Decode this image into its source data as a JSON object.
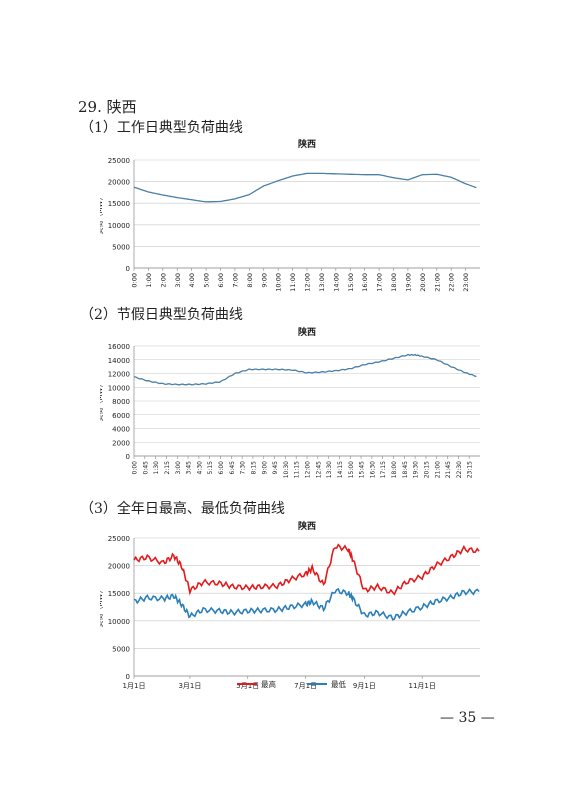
{
  "document": {
    "section_title": "29. 陕西",
    "sub1": "（1）工作日典型负荷曲线",
    "sub2": "（2）节假日典型负荷曲线",
    "sub3": "（3）全年日最高、最低负荷曲线",
    "page_number": "— 35 —"
  },
  "chart_data": [
    {
      "type": "line",
      "title": "陕西",
      "ylabel": "负荷（MW）",
      "xlabel": "",
      "ylim": [
        0,
        25000
      ],
      "yticks": [
        0,
        5000,
        10000,
        15000,
        20000,
        25000
      ],
      "ytick_labels": [
        "0",
        "5000",
        "10000",
        "15000",
        "20000",
        "25000"
      ],
      "x_tick_labels": [
        "0:00",
        "1:00",
        "2:00",
        "3:00",
        "4:00",
        "5:00",
        "6:00",
        "7:00",
        "8:00",
        "9:00",
        "10:00",
        "11:00",
        "12:00",
        "13:00",
        "14:00",
        "15:00",
        "16:00",
        "17:00",
        "18:00",
        "19:00",
        "20:00",
        "21:00",
        "22:00",
        "23:00"
      ],
      "grid": true,
      "color": "#4a7fa8",
      "series": [
        {
          "x": [
            "0:00",
            "1:00",
            "2:00",
            "3:00",
            "4:00",
            "5:00",
            "6:00",
            "7:00",
            "8:00",
            "9:00",
            "10:00",
            "11:00",
            "12:00",
            "13:00",
            "14:00",
            "15:00",
            "16:00",
            "17:00",
            "18:00",
            "19:00",
            "20:00",
            "21:00",
            "22:00",
            "23:00",
            "23:45"
          ],
          "values": [
            18700,
            17600,
            16900,
            16300,
            15800,
            15300,
            15400,
            16000,
            17000,
            19000,
            20200,
            21300,
            21900,
            21900,
            21800,
            21700,
            21600,
            21600,
            20900,
            20400,
            21600,
            21700,
            21000,
            19500,
            18600
          ]
        }
      ]
    },
    {
      "type": "line",
      "title": "陕西",
      "ylabel": "负荷（MW）",
      "xlabel": "",
      "ylim": [
        0,
        16000
      ],
      "yticks": [
        0,
        2000,
        4000,
        6000,
        8000,
        10000,
        12000,
        14000,
        16000
      ],
      "ytick_labels": [
        "0",
        "2000",
        "4000",
        "6000",
        "8000",
        "10000",
        "12000",
        "14000",
        "16000"
      ],
      "x_tick_labels": [
        "0:00",
        "0:45",
        "1:30",
        "2:15",
        "3:00",
        "3:45",
        "4:30",
        "5:15",
        "6:00",
        "6:45",
        "7:30",
        "8:15",
        "9:00",
        "9:45",
        "10:30",
        "11:15",
        "12:00",
        "12:45",
        "13:30",
        "14:15",
        "15:00",
        "15:45",
        "16:30",
        "17:15",
        "18:00",
        "18:45",
        "19:30",
        "20:15",
        "21:00",
        "21:45",
        "22:30",
        "23:15"
      ],
      "grid": true,
      "color": "#4a7fa8",
      "series": [
        {
          "x": [
            "0:00",
            "1:00",
            "2:00",
            "3:00",
            "4:00",
            "5:00",
            "6:00",
            "7:00",
            "8:00",
            "9:00",
            "10:00",
            "11:00",
            "12:00",
            "13:00",
            "14:00",
            "15:00",
            "16:00",
            "17:00",
            "18:00",
            "19:00",
            "19:30",
            "20:00",
            "21:00",
            "22:00",
            "23:00",
            "23:45"
          ],
          "values": [
            11500,
            10900,
            10500,
            10400,
            10400,
            10500,
            10800,
            12000,
            12600,
            12600,
            12600,
            12500,
            12100,
            12200,
            12400,
            12700,
            13300,
            13700,
            14200,
            14700,
            14700,
            14500,
            14000,
            13000,
            12100,
            11600
          ]
        }
      ]
    },
    {
      "type": "line",
      "title": "陕西",
      "ylabel": "负荷（MW）",
      "xlabel": "",
      "ylim": [
        0,
        25000
      ],
      "yticks": [
        0,
        5000,
        10000,
        15000,
        20000,
        25000
      ],
      "ytick_labels": [
        "0",
        "5000",
        "10000",
        "15000",
        "20000",
        "25000"
      ],
      "x_tick_labels": [
        "1月1日",
        "3月1日",
        "5月1日",
        "7月1日",
        "9月1日",
        "11月1日"
      ],
      "legend": "bottom",
      "grid": true,
      "series": [
        {
          "name": "最高",
          "color": "#e31a1c",
          "x": [
            "1月1日",
            "1月15日",
            "2月1日",
            "2月12日",
            "2月20日",
            "3月1日",
            "3月15日",
            "4月1日",
            "4月15日",
            "5月1日",
            "5月15日",
            "6月1日",
            "6月15日",
            "7月1日",
            "7月8日",
            "7月20日",
            "8月1日",
            "8月15日",
            "8月20日",
            "9月1日",
            "9月15日",
            "10月1日",
            "10月15日",
            "11月1日",
            "11月15日",
            "12月1日",
            "12月15日",
            "12月31日"
          ],
          "values": [
            21000,
            21500,
            20500,
            21800,
            20000,
            15500,
            17000,
            16800,
            16200,
            16000,
            16200,
            16300,
            17500,
            18500,
            19500,
            16500,
            23500,
            23000,
            21000,
            15500,
            16200,
            15000,
            17000,
            18000,
            20000,
            21500,
            23000,
            22600
          ]
        },
        {
          "name": "最低",
          "color": "#2b7fb8",
          "x": [
            "1月1日",
            "1月15日",
            "2月1日",
            "2月12日",
            "2月20日",
            "3月1日",
            "3月15日",
            "4月1日",
            "4月15日",
            "5月1日",
            "5月15日",
            "6月1日",
            "6月15日",
            "7月1日",
            "7月8日",
            "7月20日",
            "8月1日",
            "8月15日",
            "8月20日",
            "9月1日",
            "9月15日",
            "10月1日",
            "10月15日",
            "11月1日",
            "11月15日",
            "12月1日",
            "12月15日",
            "12月31日"
          ],
          "values": [
            13500,
            14200,
            14000,
            14500,
            13000,
            10800,
            12000,
            11800,
            11500,
            11800,
            11900,
            12000,
            12500,
            13000,
            13500,
            12200,
            15500,
            15000,
            14000,
            11000,
            11500,
            10500,
            11500,
            12500,
            13500,
            14200,
            15200,
            15300
          ]
        }
      ]
    }
  ]
}
